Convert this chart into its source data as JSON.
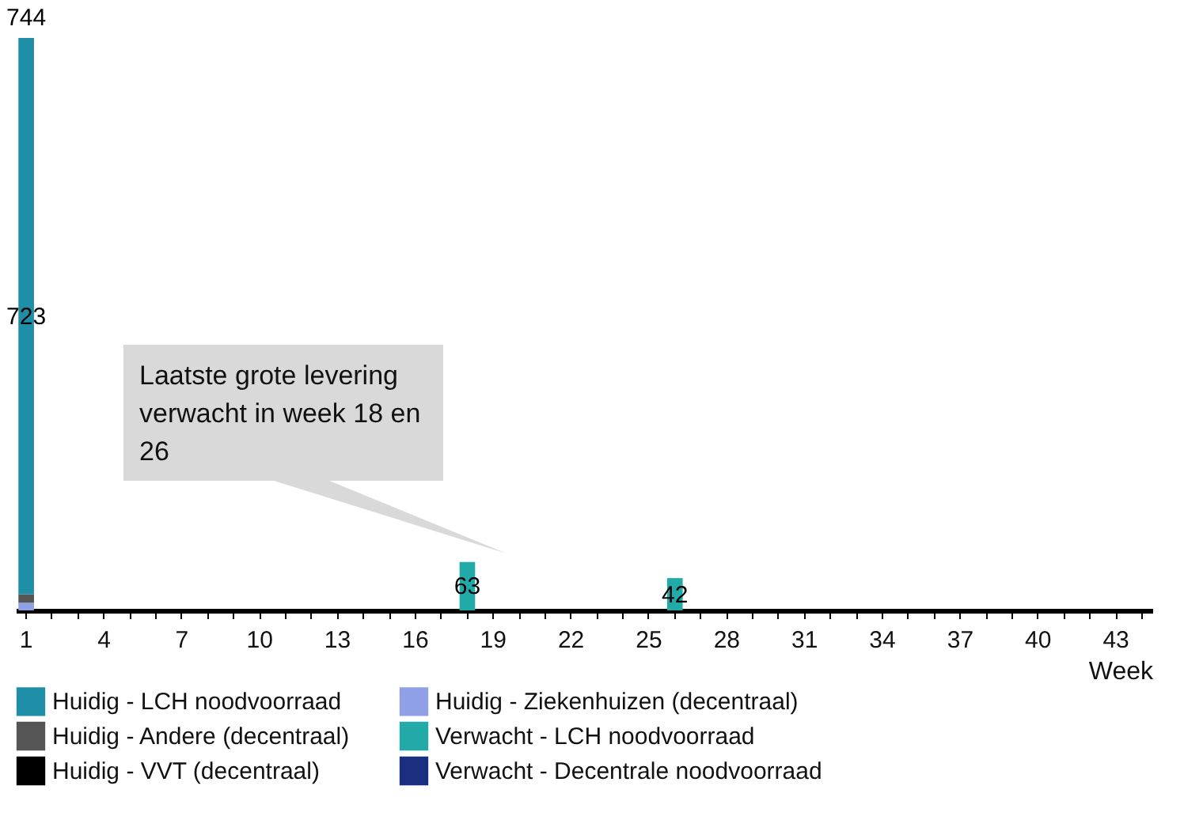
{
  "chart_data": {
    "type": "bar",
    "stacked": true,
    "xlabel": "Week",
    "categories": [
      "1",
      null,
      null,
      "4",
      null,
      null,
      "7",
      null,
      null,
      "10",
      null,
      null,
      "13",
      null,
      null,
      "16",
      null,
      null,
      "19",
      null,
      null,
      "22",
      null,
      null,
      "25",
      null,
      null,
      "28",
      null,
      null,
      "31",
      null,
      null,
      "34",
      null,
      null,
      "37",
      null,
      null,
      "40",
      null,
      null,
      "43",
      null
    ],
    "series": [
      {
        "name": "Huidig - Ziekenhuizen (decentraal)",
        "color": "#8fa0e6",
        "values": [
          10,
          null,
          null,
          null,
          null,
          null,
          null,
          null,
          null,
          null,
          null,
          null,
          null,
          null,
          null,
          null,
          null,
          null,
          null,
          null,
          null,
          null,
          null,
          null,
          null,
          null,
          null,
          null,
          null,
          null,
          null,
          null,
          null,
          null,
          null,
          null,
          null,
          null,
          null,
          null,
          null,
          null,
          null,
          null
        ]
      },
      {
        "name": "Huidig - Andere (decentraal)",
        "color": "#555555",
        "values": [
          11,
          null,
          null,
          null,
          null,
          null,
          null,
          null,
          null,
          null,
          null,
          null,
          null,
          null,
          null,
          null,
          null,
          null,
          null,
          null,
          null,
          null,
          null,
          null,
          null,
          null,
          null,
          null,
          null,
          null,
          null,
          null,
          null,
          null,
          null,
          null,
          null,
          null,
          null,
          null,
          null,
          null,
          null,
          null
        ]
      },
      {
        "name": "Huidig - VVT (decentraal)",
        "color": "#000000",
        "values": [
          null,
          null,
          null,
          null,
          null,
          null,
          null,
          null,
          null,
          null,
          null,
          null,
          null,
          null,
          null,
          null,
          null,
          null,
          null,
          null,
          null,
          null,
          null,
          null,
          null,
          null,
          null,
          null,
          null,
          null,
          null,
          null,
          null,
          null,
          null,
          null,
          null,
          null,
          null,
          null,
          null,
          null,
          null,
          null
        ]
      },
      {
        "name": "Huidig - LCH noodvoorraad",
        "color": "#1f8fa8",
        "values": [
          723,
          null,
          null,
          null,
          null,
          null,
          null,
          null,
          null,
          null,
          null,
          null,
          null,
          null,
          null,
          null,
          null,
          null,
          null,
          null,
          null,
          null,
          null,
          null,
          null,
          null,
          null,
          null,
          null,
          null,
          null,
          null,
          null,
          null,
          null,
          null,
          null,
          null,
          null,
          null,
          null,
          null,
          null,
          null
        ],
        "value_labels": [
          "723",
          null,
          null,
          null,
          null,
          null,
          null,
          null,
          null,
          null,
          null,
          null,
          null,
          null,
          null,
          null,
          null,
          null,
          null,
          null,
          null,
          null,
          null,
          null,
          null,
          null,
          null,
          null,
          null,
          null,
          null,
          null,
          null,
          null,
          null,
          null,
          null,
          null,
          null,
          null,
          null,
          null,
          null,
          null
        ]
      },
      {
        "name": "Verwacht - LCH noodvoorraad",
        "color": "#22aaa8",
        "values": [
          null,
          null,
          null,
          null,
          null,
          null,
          null,
          null,
          null,
          null,
          null,
          null,
          null,
          null,
          null,
          null,
          null,
          63,
          null,
          null,
          null,
          null,
          null,
          null,
          null,
          42,
          null,
          null,
          null,
          null,
          null,
          null,
          null,
          null,
          null,
          null,
          null,
          null,
          null,
          null,
          null,
          null,
          null,
          null
        ],
        "value_labels": [
          null,
          null,
          null,
          null,
          null,
          null,
          null,
          null,
          null,
          null,
          null,
          null,
          null,
          null,
          null,
          null,
          null,
          "63",
          null,
          null,
          null,
          null,
          null,
          null,
          null,
          "42",
          null,
          null,
          null,
          null,
          null,
          null,
          null,
          null,
          null,
          null,
          null,
          null,
          null,
          null,
          null,
          null,
          null,
          null
        ]
      },
      {
        "name": "Verwacht - Decentrale noodvoorraad",
        "color": "#1a2f80",
        "values": [
          null,
          null,
          null,
          null,
          null,
          null,
          null,
          null,
          null,
          null,
          null,
          null,
          null,
          null,
          null,
          null,
          null,
          null,
          null,
          null,
          null,
          null,
          null,
          null,
          null,
          null,
          null,
          null,
          null,
          null,
          null,
          null,
          null,
          null,
          null,
          null,
          null,
          null,
          null,
          null,
          null,
          null,
          null,
          null
        ]
      }
    ],
    "totals": [
      "744",
      null,
      null,
      null,
      null,
      null,
      null,
      null,
      null,
      null,
      null,
      null,
      null,
      null,
      null,
      null,
      null,
      null,
      null,
      null,
      null,
      null,
      null,
      null,
      null,
      null,
      null,
      null,
      null,
      null,
      null,
      null,
      null,
      null,
      null,
      null,
      null,
      null,
      null,
      null,
      null,
      null,
      null,
      null
    ],
    "ylim": [
      0,
      744
    ],
    "tick_labels": "x",
    "grid": false,
    "legend": "bottom",
    "annotations": [
      "Laatste grote levering verwacht in week 18 en 26"
    ]
  }
}
